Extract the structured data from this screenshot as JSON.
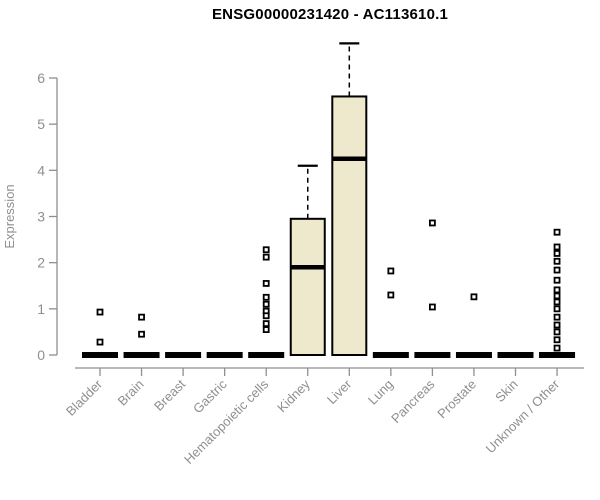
{
  "chart_data": {
    "type": "boxplot",
    "title": "ENSG00000231420 - AC113610.1",
    "ylabel": "Expression",
    "xlabel": "",
    "ylim": [
      0,
      6
    ],
    "yticks": [
      0,
      1,
      2,
      3,
      4,
      5,
      6
    ],
    "grid": false,
    "legend": "none",
    "colors": {
      "box_fill": "#EEE8CD",
      "box_stroke": "#000000",
      "median": "#000000",
      "whisker": "#000000",
      "outlier_stroke": "#000000",
      "outlier_fill": "#ffffff",
      "axis": "#8F8F8F",
      "tick_label": "#8F8F8F",
      "title": "#000000",
      "background": "#ffffff"
    },
    "categories": [
      "Bladder",
      "Brain",
      "Breast",
      "Gastric",
      "Hematopoietic cells",
      "Kidney",
      "Liver",
      "Lung",
      "Pancreas",
      "Prostate",
      "Skin",
      "Unknown / Other"
    ],
    "series": [
      {
        "category": "Bladder",
        "q1": 0,
        "median": 0,
        "q3": 0,
        "whisker_low": 0,
        "whisker_high": 0,
        "outliers": [
          0.93,
          0.28
        ]
      },
      {
        "category": "Brain",
        "q1": 0,
        "median": 0,
        "q3": 0,
        "whisker_low": 0,
        "whisker_high": 0,
        "outliers": [
          0.82,
          0.45
        ]
      },
      {
        "category": "Breast",
        "q1": 0,
        "median": 0,
        "q3": 0,
        "whisker_low": 0,
        "whisker_high": 0,
        "outliers": []
      },
      {
        "category": "Gastric",
        "q1": 0,
        "median": 0,
        "q3": 0,
        "whisker_low": 0,
        "whisker_high": 0,
        "outliers": []
      },
      {
        "category": "Hematopoietic cells",
        "q1": 0,
        "median": 0,
        "q3": 0,
        "whisker_low": 0,
        "whisker_high": 0,
        "outliers": [
          2.28,
          2.12,
          1.55,
          1.25,
          1.1,
          0.95,
          0.85,
          0.68,
          0.55
        ]
      },
      {
        "category": "Kidney",
        "q1": 0,
        "median": 1.9,
        "q3": 2.95,
        "whisker_low": 0,
        "whisker_high": 4.1,
        "outliers": []
      },
      {
        "category": "Liver",
        "q1": 0,
        "median": 4.25,
        "q3": 5.6,
        "whisker_low": 0,
        "whisker_high": 6.75,
        "outliers": []
      },
      {
        "category": "Lung",
        "q1": 0,
        "median": 0,
        "q3": 0,
        "whisker_low": 0,
        "whisker_high": 0,
        "outliers": [
          1.82,
          1.3
        ]
      },
      {
        "category": "Pancreas",
        "q1": 0,
        "median": 0,
        "q3": 0,
        "whisker_low": 0,
        "whisker_high": 0,
        "outliers": [
          2.86,
          1.04
        ]
      },
      {
        "category": "Prostate",
        "q1": 0,
        "median": 0,
        "q3": 0,
        "whisker_low": 0,
        "whisker_high": 0,
        "outliers": [
          1.26
        ]
      },
      {
        "category": "Skin",
        "q1": 0,
        "median": 0,
        "q3": 0,
        "whisker_low": 0,
        "whisker_high": 0,
        "outliers": []
      },
      {
        "category": "Unknown / Other",
        "q1": 0,
        "median": 0,
        "q3": 0,
        "whisker_low": 0,
        "whisker_high": 0,
        "outliers": [
          2.66,
          2.34,
          2.2,
          2.03,
          1.84,
          1.62,
          1.41,
          1.28,
          1.15,
          1.0,
          0.82,
          0.65,
          0.5,
          0.33,
          0.15
        ]
      }
    ]
  }
}
